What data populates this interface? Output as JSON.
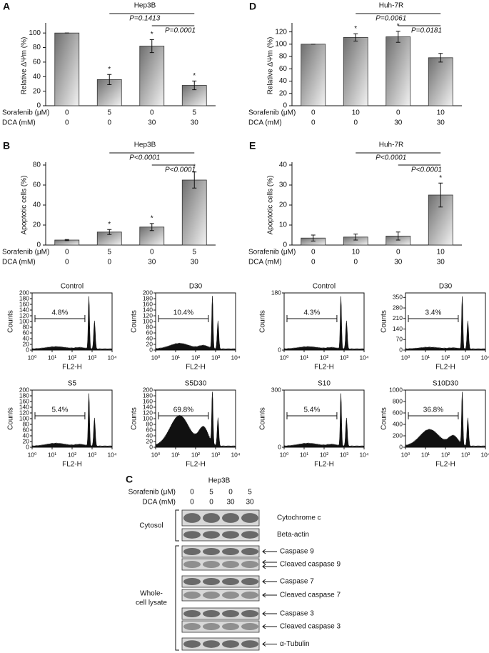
{
  "chart_data": [
    {
      "type": "bar",
      "panel": "A",
      "title": "Hep3B",
      "y_label": "Relative ΔΨm (%)",
      "color": "#9a9a9a",
      "row_labels": [
        "Sorafenib (μM)",
        "DCA (mM)"
      ],
      "rows": [
        [
          "0",
          "5",
          "0",
          "5"
        ],
        [
          "0",
          "0",
          "30",
          "30"
        ]
      ],
      "values": [
        100,
        36,
        82,
        28
      ],
      "errors": [
        0,
        7,
        9,
        6
      ],
      "ylim": [
        0,
        110
      ],
      "yticks": [
        0,
        20,
        40,
        60,
        80,
        100
      ],
      "stars": [
        {
          "index": 1,
          "label": "*"
        },
        {
          "index": 2,
          "label": "*"
        },
        {
          "index": 3,
          "label": "*"
        }
      ],
      "brackets": [
        {
          "from": 1,
          "to": 3,
          "label": "P=0.1413"
        },
        {
          "from": 2,
          "to": 3,
          "label": "P=0.0001"
        }
      ]
    },
    {
      "type": "bar",
      "panel": "D",
      "title": "Huh-7R",
      "y_label": "Relative ΔΨm (%)",
      "color": "#9a9a9a",
      "row_labels": [
        "Sorafenib (μM)",
        "DCA (mM)"
      ],
      "rows": [
        [
          "0",
          "10",
          "0",
          "10"
        ],
        [
          "0",
          "0",
          "30",
          "30"
        ]
      ],
      "values": [
        100,
        111,
        112,
        78
      ],
      "errors": [
        0,
        6,
        9,
        7
      ],
      "ylim": [
        0,
        130
      ],
      "yticks": [
        0,
        20,
        40,
        60,
        80,
        100,
        120
      ],
      "stars": [
        {
          "index": 1,
          "label": "*"
        },
        {
          "index": 2,
          "label": "*"
        }
      ],
      "brackets": [
        {
          "from": 1,
          "to": 3,
          "label": "P=0.0061"
        },
        {
          "from": 2,
          "to": 3,
          "label": "P=0.0181"
        }
      ]
    },
    {
      "type": "bar",
      "panel": "B",
      "title": "Hep3B",
      "y_label": "Apoptotic cells (%)",
      "color": "#9a9a9a",
      "row_labels": [
        "Sorafenib (μM)",
        "DCA (mM)"
      ],
      "rows": [
        [
          "0",
          "5",
          "0",
          "5"
        ],
        [
          "0",
          "0",
          "30",
          "30"
        ]
      ],
      "values": [
        5,
        13,
        18,
        65
      ],
      "errors": [
        0.5,
        2.5,
        3.5,
        8
      ],
      "ylim": [
        0,
        80
      ],
      "yticks": [
        0,
        20,
        40,
        60,
        80
      ],
      "stars": [
        {
          "index": 1,
          "label": "*"
        },
        {
          "index": 2,
          "label": "*"
        },
        {
          "index": 3,
          "label": "*"
        }
      ],
      "brackets": [
        {
          "from": 1,
          "to": 3,
          "label": "P<0.0001"
        },
        {
          "from": 2,
          "to": 3,
          "label": "P<0.0001"
        }
      ]
    },
    {
      "type": "bar",
      "panel": "E",
      "title": "Huh-7R",
      "y_label": "Apoptotic cells (%)",
      "color": "#9a9a9a",
      "row_labels": [
        "Sorafenib (μM)",
        "DCA (mM)"
      ],
      "rows": [
        [
          "0",
          "10",
          "0",
          "10"
        ],
        [
          "0",
          "0",
          "30",
          "30"
        ]
      ],
      "values": [
        3.5,
        4,
        4.5,
        25
      ],
      "errors": [
        1.5,
        1.5,
        2,
        6
      ],
      "ylim": [
        0,
        40
      ],
      "yticks": [
        0,
        10,
        20,
        30,
        40
      ],
      "stars": [
        {
          "index": 3,
          "label": "*"
        }
      ],
      "brackets": [
        {
          "from": 1,
          "to": 3,
          "label": "P<0.0001"
        },
        {
          "from": 2,
          "to": 3,
          "label": "P<0.0001"
        }
      ]
    }
  ],
  "flow_panels": [
    {
      "title": "Control",
      "gate_label": "4.8%",
      "y_label": "Counts",
      "x_label": "FL2-H",
      "ylim": [
        0,
        200
      ],
      "yticks": [
        0,
        20,
        40,
        60,
        80,
        100,
        120,
        140,
        160,
        180,
        200
      ],
      "xticks": [
        "10⁰",
        "10¹",
        "10²",
        "10³",
        "10⁴"
      ]
    },
    {
      "title": "D30",
      "gate_label": "10.4%",
      "y_label": "Counts",
      "x_label": "FL2-H",
      "ylim": [
        0,
        200
      ],
      "yticks": [
        0,
        20,
        40,
        60,
        80,
        100,
        120,
        140,
        160,
        180,
        200
      ],
      "xticks": [
        "10⁰",
        "10¹",
        "10²",
        "10³",
        "10⁴"
      ]
    },
    {
      "title": "S5",
      "gate_label": "5.4%",
      "y_label": "Counts",
      "x_label": "FL2-H",
      "ylim": [
        0,
        200
      ],
      "yticks": [
        0,
        20,
        40,
        60,
        80,
        100,
        120,
        140,
        160,
        180,
        200
      ],
      "xticks": [
        "10⁰",
        "10¹",
        "10²",
        "10³",
        "10⁴"
      ]
    },
    {
      "title": "S5D30",
      "gate_label": "69.8%",
      "y_label": "Counts",
      "x_label": "FL2-H",
      "ylim": [
        0,
        200
      ],
      "yticks": [
        0,
        20,
        40,
        60,
        80,
        100,
        120,
        140,
        160,
        180,
        200
      ],
      "xticks": [
        "10⁰",
        "10¹",
        "10²",
        "10³",
        "10⁴"
      ]
    },
    {
      "title": "Control",
      "gate_label": "4.3%",
      "y_label": "Counts",
      "x_label": "FL2-H",
      "ylim": [
        0,
        180
      ],
      "yticks": [
        0,
        180
      ],
      "xticks": [
        "10⁰",
        "10¹",
        "10²",
        "10³",
        "10⁴"
      ]
    },
    {
      "title": "D30",
      "gate_label": "3.4%",
      "y_label": "Counts",
      "x_label": "FL2-H",
      "ylim": [
        0,
        380
      ],
      "yticks": [
        0,
        70,
        140,
        210,
        280,
        350
      ],
      "xticks": [
        "10⁰",
        "10¹",
        "10²",
        "10³",
        "10⁴"
      ]
    },
    {
      "title": "S10",
      "gate_label": "5.4%",
      "y_label": "Counts",
      "x_label": "FL2-H",
      "ylim": [
        0,
        300
      ],
      "yticks": [
        0,
        300
      ],
      "xticks": [
        "10⁰",
        "10¹",
        "10²",
        "10³",
        "10⁴"
      ]
    },
    {
      "title": "S10D30",
      "gate_label": "36.8%",
      "y_label": "Counts",
      "x_label": "FL2-H",
      "ylim": [
        0,
        1000
      ],
      "yticks": [
        0,
        200,
        400,
        600,
        800,
        1000
      ],
      "xticks": [
        "10⁰",
        "10¹",
        "10²",
        "10³",
        "10⁴"
      ]
    }
  ],
  "blot": {
    "panel": "C",
    "title": "Hep3B",
    "row_labels": [
      "Sorafenib (μM)",
      "DCA (mM)"
    ],
    "rows": [
      [
        "0",
        "5",
        "0",
        "5"
      ],
      [
        "0",
        "0",
        "30",
        "30"
      ]
    ],
    "groups": [
      "Cytosol",
      "Whole-",
      "cell lysate"
    ],
    "bands": [
      "Cytochrome c",
      "Beta-actin",
      "Caspase 9",
      "Cleaved caspase 9",
      "Caspase 7",
      "Cleaved caspase 7",
      "Caspase 3",
      "Cleaved caspase 3",
      "α-Tubulin"
    ]
  }
}
